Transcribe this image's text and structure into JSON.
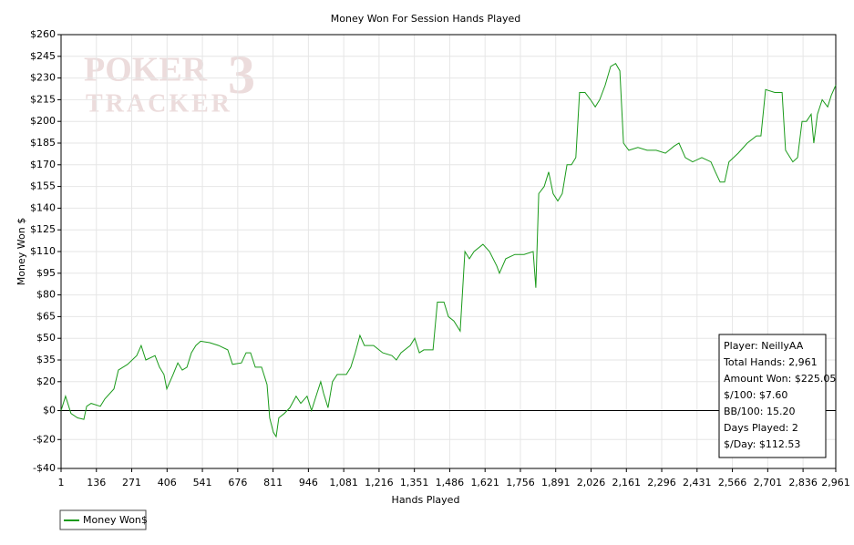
{
  "chart_data": {
    "type": "line",
    "title": "Money Won For Session Hands Played",
    "x_label": "Hands Played",
    "y_label": "Money Won $",
    "watermark": [
      "POKER",
      "TRACKER",
      "3"
    ],
    "xlim": [
      1,
      2961
    ],
    "ylim": [
      -40,
      260
    ],
    "xticks": [
      1,
      136,
      271,
      406,
      541,
      676,
      811,
      946,
      {
        "value": 1081,
        "label": "1,081"
      },
      {
        "value": 1216,
        "label": "1,216"
      },
      {
        "value": 1351,
        "label": "1,351"
      },
      {
        "value": 1486,
        "label": "1,486"
      },
      {
        "value": 1621,
        "label": "1,621"
      },
      {
        "value": 1756,
        "label": "1,756"
      },
      {
        "value": 1891,
        "label": "1,891"
      },
      {
        "value": 2026,
        "label": "2,026"
      },
      {
        "value": 2161,
        "label": "2,161"
      },
      {
        "value": 2296,
        "label": "2,296"
      },
      {
        "value": 2431,
        "label": "2,431"
      },
      {
        "value": 2566,
        "label": "2,566"
      },
      {
        "value": 2701,
        "label": "2,701"
      },
      {
        "value": 2836,
        "label": "2,836"
      },
      {
        "value": 2961,
        "label": "2,961"
      }
    ],
    "yticks": [
      {
        "value": 260,
        "label": "$260"
      },
      {
        "value": 245,
        "label": "$245"
      },
      {
        "value": 230,
        "label": "$230"
      },
      {
        "value": 215,
        "label": "$215"
      },
      {
        "value": 200,
        "label": "$200"
      },
      {
        "value": 185,
        "label": "$185"
      },
      {
        "value": 170,
        "label": "$170"
      },
      {
        "value": 155,
        "label": "$155"
      },
      {
        "value": 140,
        "label": "$140"
      },
      {
        "value": 125,
        "label": "$125"
      },
      {
        "value": 110,
        "label": "$110"
      },
      {
        "value": 95,
        "label": "$95"
      },
      {
        "value": 80,
        "label": "$80"
      },
      {
        "value": 65,
        "label": "$65"
      },
      {
        "value": 50,
        "label": "$50"
      },
      {
        "value": 35,
        "label": "$35"
      },
      {
        "value": 20,
        "label": "$20"
      },
      {
        "value": 0,
        "label": "$0"
      },
      {
        "value": -20,
        "label": "-$20"
      },
      {
        "value": -40,
        "label": "-$40"
      }
    ],
    "grid": true,
    "zero_line": true,
    "legend": "bottom-left",
    "x": [
      1,
      18,
      39,
      64,
      88,
      99,
      116,
      151,
      168,
      203,
      220,
      255,
      290,
      307,
      325,
      360,
      377,
      394,
      405,
      429,
      447,
      464,
      482,
      499,
      516,
      534,
      569,
      603,
      638,
      656,
      690,
      708,
      725,
      743,
      767,
      788,
      798,
      812,
      823,
      833,
      854,
      875,
      899,
      917,
      941,
      958,
      979,
      993,
      1004,
      1021,
      1038,
      1056,
      1091,
      1108,
      1125,
      1143,
      1160,
      1195,
      1230,
      1265,
      1282,
      1300,
      1335,
      1352,
      1370,
      1387,
      1422,
      1439,
      1464,
      1481,
      1502,
      1526,
      1544,
      1561,
      1579,
      1613,
      1638,
      1666,
      1676,
      1700,
      1735,
      1770,
      1805,
      1815,
      1826,
      1847,
      1864,
      1881,
      1899,
      1916,
      1934,
      1951,
      1968,
      1982,
      2003,
      2024,
      2042,
      2059,
      2080,
      2101,
      2120,
      2136,
      2150,
      2170,
      2205,
      2240,
      2275,
      2310,
      2344,
      2362,
      2386,
      2414,
      2449,
      2484,
      2501,
      2519,
      2536,
      2553,
      2588,
      2623,
      2658,
      2675,
      2693,
      2728,
      2756,
      2769,
      2797,
      2815,
      2832,
      2849,
      2867,
      2877,
      2891,
      2909,
      2930,
      2944,
      2961
    ],
    "series": [
      {
        "name": "Money Won$",
        "color": "#1a9a1a",
        "values": [
          0,
          10,
          -2,
          -5,
          -6,
          3,
          5,
          3,
          8,
          15,
          28,
          32,
          38,
          45,
          35,
          38,
          30,
          25,
          15,
          25,
          33,
          28,
          30,
          40,
          45,
          48,
          47,
          45,
          42,
          32,
          33,
          40,
          40,
          30,
          30,
          18,
          -5,
          -15,
          -18,
          -5,
          -2,
          2,
          10,
          5,
          10,
          0,
          12,
          20,
          12,
          2,
          20,
          25,
          25,
          30,
          40,
          52,
          45,
          45,
          40,
          38,
          35,
          40,
          45,
          50,
          40,
          42,
          42,
          75,
          75,
          65,
          62,
          55,
          110,
          105,
          110,
          115,
          110,
          100,
          95,
          105,
          108,
          108,
          110,
          85,
          150,
          155,
          165,
          150,
          145,
          150,
          170,
          170,
          175,
          220,
          220,
          215,
          210,
          215,
          225,
          238,
          240,
          235,
          185,
          180,
          182,
          180,
          180,
          178,
          183,
          185,
          175,
          172,
          175,
          172,
          165,
          158,
          158,
          172,
          178,
          185,
          190,
          190,
          222,
          220,
          220,
          180,
          172,
          175,
          200,
          200,
          205,
          185,
          205,
          215,
          210,
          218,
          225.05
        ]
      }
    ],
    "stats": [
      "Player: NeillyAA",
      "Total Hands: 2,961",
      "Amount Won: $225.05",
      "$/100: $7.60",
      "BB/100: 15.20",
      "Days Played: 2",
      "$/Day: $112.53"
    ]
  }
}
